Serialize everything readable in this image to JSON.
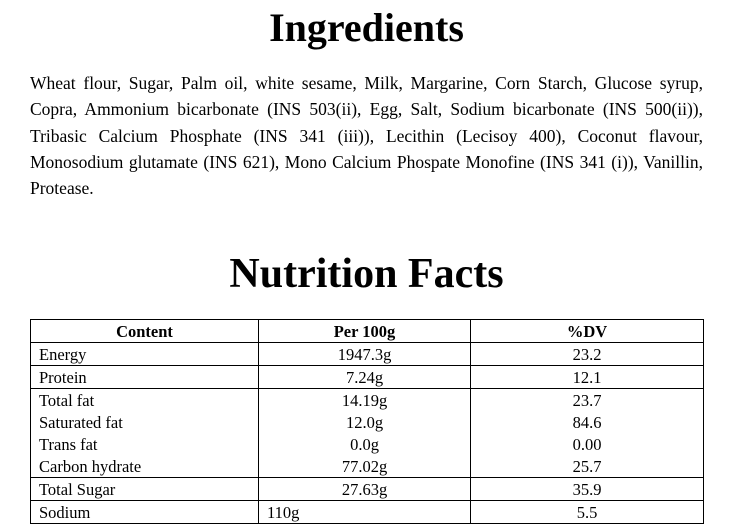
{
  "page": {
    "ingredients_title": "Ingredients",
    "ingredients_text": "Wheat flour, Sugar, Palm oil, white sesame, Milk, Margarine, Corn Starch, Glucose syrup, Copra, Ammonium bicarbonate (INS 503(ii), Egg, Salt, Sodium bicarbonate (INS 500(ii)), Tribasic Calcium Phosphate (INS 341 (iii)), Lecithin (Lecisoy 400), Coconut flavour, Monosodium glutamate (INS 621), Mono Calcium Phospate Monofine (INS 341 (i)), Vanillin, Protease.",
    "nutrition_title": "Nutrition Facts"
  },
  "nutrition_table": {
    "headers": [
      "Content",
      "Per 100g",
      "%DV"
    ],
    "rows": [
      {
        "content": "Energy",
        "per_100g": "1947.3g",
        "dv": "23.2"
      },
      {
        "content": "Protein",
        "per_100g": "7.24g",
        "dv": "12.1"
      },
      {
        "content": "Total fat",
        "per_100g": "14.19g",
        "dv": "23.7"
      },
      {
        "content": "Saturated fat",
        "per_100g": "12.0g",
        "dv": "84.6"
      },
      {
        "content": "Trans fat",
        "per_100g": "0.0g",
        "dv": "0.00"
      },
      {
        "content": "Carbon hydrate",
        "per_100g": "77.02g",
        "dv": "25.7"
      },
      {
        "content": "Total Sugar",
        "per_100g": "27.63g",
        "dv": "35.9"
      },
      {
        "content": "Sodium",
        "per_100g": "110g",
        "dv": "5.5"
      }
    ]
  },
  "colors": {
    "background": "#ffffff",
    "text": "#000000",
    "table_border": "#000000"
  }
}
